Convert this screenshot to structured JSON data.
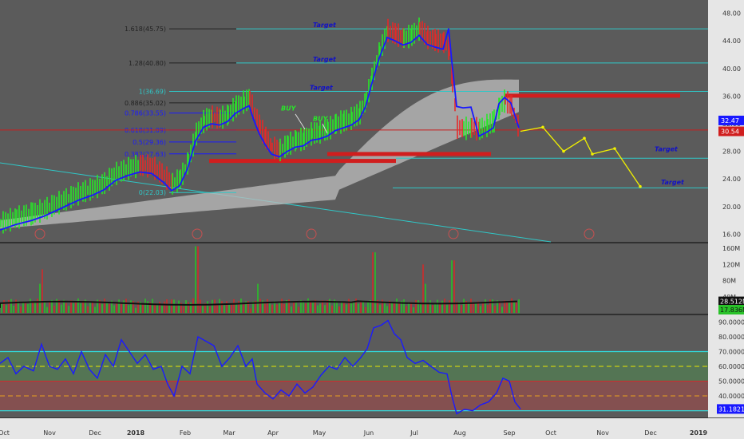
{
  "chart_data": [
    {
      "type": "line",
      "panel": "price",
      "x_labels": [
        "Oct",
        "Nov",
        "Dec",
        "2018",
        "Feb",
        "Mar",
        "Apr",
        "May",
        "Jun",
        "Jul",
        "Aug",
        "Sep",
        "Oct",
        "Nov",
        "Dec",
        "2019"
      ],
      "y_ticks": [
        "48.00",
        "44.00",
        "40.00",
        "36.00",
        "32.00",
        "28.00",
        "24.00",
        "20.00",
        "16.00"
      ],
      "ylim": [
        15,
        49
      ],
      "price_series": [
        [
          0,
          17.6
        ],
        [
          20,
          18.4
        ],
        [
          40,
          19.0
        ],
        [
          55,
          19.6
        ],
        [
          70,
          20.4
        ],
        [
          85,
          21.2
        ],
        [
          100,
          22.0
        ],
        [
          115,
          22.6
        ],
        [
          130,
          23.4
        ],
        [
          145,
          24.8
        ],
        [
          160,
          25.5
        ],
        [
          175,
          26.0
        ],
        [
          190,
          25.8
        ],
        [
          205,
          24.5
        ],
        [
          215,
          23.3
        ],
        [
          225,
          24.0
        ],
        [
          235,
          26.5
        ],
        [
          245,
          30.5
        ],
        [
          255,
          32.5
        ],
        [
          265,
          33.0
        ],
        [
          275,
          32.8
        ],
        [
          285,
          33.3
        ],
        [
          295,
          34.5
        ],
        [
          305,
          35.2
        ],
        [
          312,
          35.6
        ],
        [
          318,
          33.5
        ],
        [
          325,
          31.5
        ],
        [
          332,
          30.0
        ],
        [
          340,
          28.6
        ],
        [
          350,
          28.2
        ],
        [
          360,
          29.0
        ],
        [
          370,
          29.6
        ],
        [
          380,
          29.8
        ],
        [
          390,
          30.6
        ],
        [
          400,
          30.8
        ],
        [
          410,
          31.2
        ],
        [
          420,
          32.0
        ],
        [
          430,
          32.4
        ],
        [
          440,
          32.8
        ],
        [
          450,
          33.6
        ],
        [
          458,
          35.5
        ],
        [
          465,
          38.5
        ],
        [
          475,
          42.5
        ],
        [
          485,
          45.5
        ],
        [
          495,
          45.0
        ],
        [
          505,
          44.4
        ],
        [
          515,
          44.8
        ],
        [
          525,
          45.8
        ],
        [
          535,
          44.5
        ],
        [
          545,
          44.1
        ],
        [
          555,
          43.8
        ],
        [
          562,
          42.8
        ],
        [
          566,
          38.0
        ],
        [
          572,
          31.5
        ],
        [
          580,
          31.3
        ],
        [
          590,
          31.4
        ],
        [
          600,
          31.2
        ],
        [
          610,
          31.8
        ],
        [
          618,
          32.4
        ],
        [
          625,
          34.5
        ],
        [
          632,
          35.4
        ],
        [
          640,
          34.6
        ],
        [
          645,
          32.8
        ],
        [
          650,
          31.0
        ]
      ],
      "fib_levels": [
        {
          "label": "1.618(45.75)",
          "value": 45.75
        },
        {
          "label": "1.28(40.80)",
          "value": 40.8
        },
        {
          "label": "1(36.69)",
          "value": 36.69
        },
        {
          "label": "0.886(35.02)",
          "value": 35.02
        },
        {
          "label": "0.786(33.55)",
          "value": 33.55
        },
        {
          "label": "0.618(31.09)",
          "value": 31.09
        },
        {
          "label": "0.5(29.36)",
          "value": 29.36
        },
        {
          "label": "0.382(27.63)",
          "value": 27.63
        },
        {
          "label": "0(22.03)",
          "value": 22.03
        }
      ],
      "target_label": "Target",
      "buy_label": "BUY",
      "resistance_label": "",
      "last_price": "32.47",
      "current_price": "30.54"
    },
    {
      "type": "bar",
      "panel": "volume",
      "y_ticks": [
        "160M",
        "120M",
        "80M",
        "40M"
      ],
      "ylim": [
        0,
        170
      ],
      "ma_value": "28.512M",
      "last_value": "17.836M"
    },
    {
      "type": "line",
      "panel": "rsi",
      "y_ticks": [
        "90.0000",
        "80.0000",
        "70.0000",
        "60.0000",
        "50.0000",
        "40.0000",
        "30.0000"
      ],
      "ylim": [
        26,
        94
      ],
      "last_value": "31.1821",
      "levels": [
        70,
        60,
        50,
        40,
        30
      ]
    }
  ]
}
